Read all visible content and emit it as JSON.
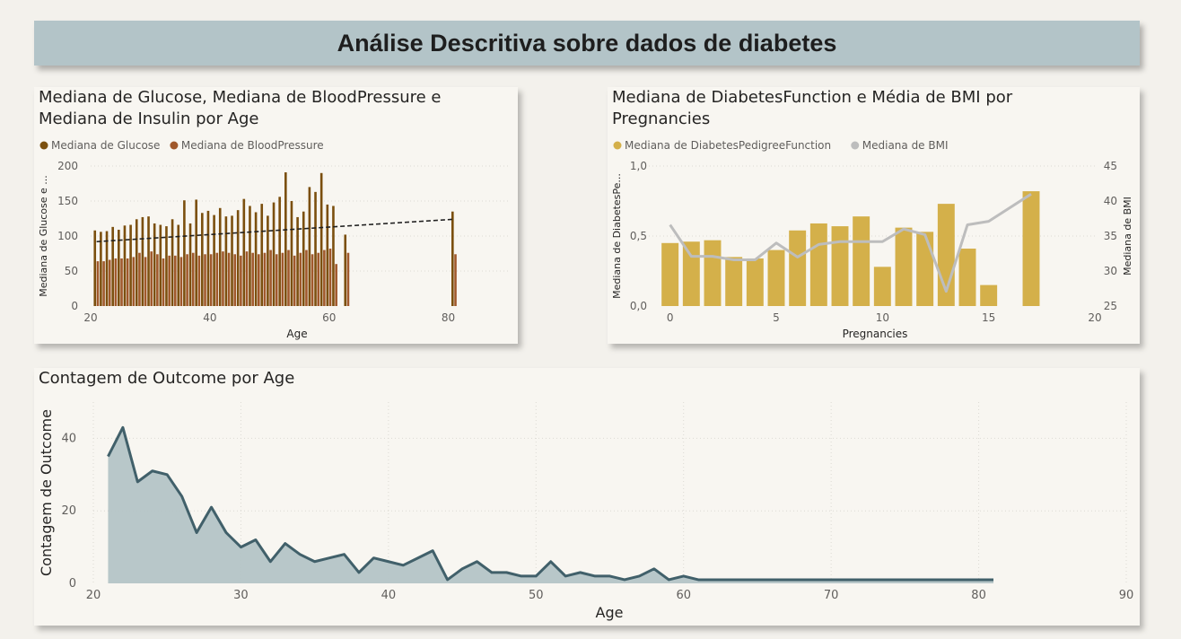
{
  "header": {
    "title": "Análise Descritiva sobre dados de diabetes"
  },
  "chart_data": [
    {
      "type": "bar",
      "title": "Mediana de Glucose, Mediana de BloodPressure e Mediana de Insulin por Age",
      "title_lines": [
        "Mediana de Glucose, Mediana de BloodPressure e",
        "Mediana de Insulin por Age"
      ],
      "xlabel": "Age",
      "ylabel": "Mediana de Glucose e ...",
      "xlim": [
        20,
        90
      ],
      "ylim": [
        0,
        200
      ],
      "xticks": [
        "20",
        "40",
        "60",
        "80"
      ],
      "yticks": [
        "0",
        "50",
        "100",
        "150",
        "200"
      ],
      "legend": [
        "Mediana de Glucose",
        "Mediana de BloodPressure"
      ],
      "colors": [
        "#7b4f0e",
        "#a0582b"
      ],
      "x": [
        21,
        22,
        23,
        24,
        25,
        26,
        27,
        28,
        29,
        30,
        31,
        32,
        33,
        34,
        35,
        36,
        37,
        38,
        39,
        40,
        41,
        42,
        43,
        44,
        45,
        46,
        47,
        48,
        49,
        50,
        51,
        52,
        53,
        54,
        55,
        56,
        57,
        58,
        59,
        60,
        61,
        62,
        63,
        81
      ],
      "series": [
        {
          "name": "Mediana de Glucose",
          "values": [
            108,
            106,
            107,
            113,
            109,
            115,
            116,
            124,
            127,
            128,
            118,
            116,
            114,
            124,
            116,
            151,
            118,
            152,
            133,
            136,
            130,
            140,
            128,
            129,
            137,
            153,
            143,
            134,
            146,
            129,
            148,
            156,
            191,
            150,
            127,
            135,
            170,
            163,
            190,
            145,
            143,
            0,
            102,
            135
          ]
        },
        {
          "name": "Mediana de BloodPressure",
          "values": [
            64,
            64,
            66,
            68,
            68,
            68,
            70,
            76,
            70,
            78,
            74,
            68,
            72,
            72,
            70,
            74,
            76,
            72,
            74,
            74,
            76,
            78,
            76,
            74,
            72,
            78,
            76,
            74,
            76,
            80,
            74,
            76,
            80,
            72,
            76,
            80,
            74,
            76,
            80,
            82,
            60,
            0,
            76,
            74
          ]
        }
      ],
      "trendline": {
        "x": [
          21,
          81
        ],
        "y": [
          92,
          124
        ],
        "style": "dashed"
      },
      "grid": true,
      "legend_position": "top-left"
    },
    {
      "type": "bar",
      "title": "Mediana de DiabetesFunction e Média de BMI por Pregnancies",
      "title_lines": [
        "Mediana de DiabetesFunction e Média de BMI por",
        "Pregnancies"
      ],
      "xlabel": "Pregnancies",
      "ylabel": "Mediana de DiabetesPe...",
      "y2label": "Mediana de BMI",
      "xlim": [
        -1,
        20
      ],
      "ylim": [
        0,
        1.0
      ],
      "y2lim": [
        25,
        45
      ],
      "xticks": [
        "0",
        "5",
        "10",
        "15",
        "20"
      ],
      "yticks": [
        "0,0",
        "0,5",
        "1,0"
      ],
      "y2ticks": [
        "25",
        "30",
        "35",
        "40",
        "45"
      ],
      "legend": [
        "Mediana de DiabetesPedigreeFunction",
        "Mediana de BMI"
      ],
      "colors": [
        "#d4b04a",
        "#bdbdbd"
      ],
      "x": [
        0,
        1,
        2,
        3,
        4,
        5,
        6,
        7,
        8,
        9,
        10,
        11,
        12,
        13,
        14,
        15,
        17
      ],
      "series": [
        {
          "name": "Mediana de DiabetesPedigreeFunction",
          "axis": "left",
          "values": [
            0.45,
            0.46,
            0.47,
            0.35,
            0.34,
            0.4,
            0.54,
            0.59,
            0.57,
            0.64,
            0.28,
            0.56,
            0.53,
            0.73,
            0.41,
            0.15,
            0.82
          ]
        },
        {
          "name": "Mediana de BMI",
          "axis": "right",
          "type": "line",
          "values": [
            36.6,
            32.1,
            32.1,
            31.6,
            31.6,
            34.0,
            32.0,
            33.8,
            34.2,
            34.2,
            34.2,
            36.0,
            35.2,
            27.1,
            36.6,
            37.1,
            41.0
          ]
        }
      ],
      "grid": true,
      "legend_position": "top-left"
    },
    {
      "type": "area",
      "title": "Contagem de Outcome por Age",
      "xlabel": "Age",
      "ylabel": "Contagem de Outcome",
      "xlim": [
        20,
        90
      ],
      "ylim": [
        0,
        50
      ],
      "xticks": [
        "20",
        "30",
        "40",
        "50",
        "60",
        "70",
        "80",
        "90"
      ],
      "yticks": [
        "0",
        "20",
        "40"
      ],
      "colors": [
        "#b4c4c6",
        "#41606a"
      ],
      "x": [
        21,
        22,
        23,
        24,
        25,
        26,
        27,
        28,
        29,
        30,
        31,
        32,
        33,
        34,
        35,
        36,
        37,
        38,
        39,
        40,
        41,
        42,
        43,
        44,
        45,
        46,
        47,
        48,
        49,
        50,
        51,
        52,
        53,
        54,
        55,
        56,
        57,
        58,
        59,
        60,
        61,
        62,
        63,
        64,
        65,
        66,
        67,
        68,
        69,
        70,
        81
      ],
      "values": [
        35,
        43,
        28,
        31,
        30,
        24,
        14,
        21,
        14,
        10,
        12,
        6,
        11,
        8,
        6,
        7,
        8,
        3,
        7,
        6,
        5,
        7,
        9,
        1,
        4,
        6,
        3,
        3,
        2,
        2,
        6,
        2,
        3,
        2,
        2,
        1,
        2,
        4,
        1,
        2,
        1,
        1,
        1,
        1,
        1,
        1,
        1,
        1,
        1,
        1,
        1
      ],
      "grid": true
    }
  ]
}
